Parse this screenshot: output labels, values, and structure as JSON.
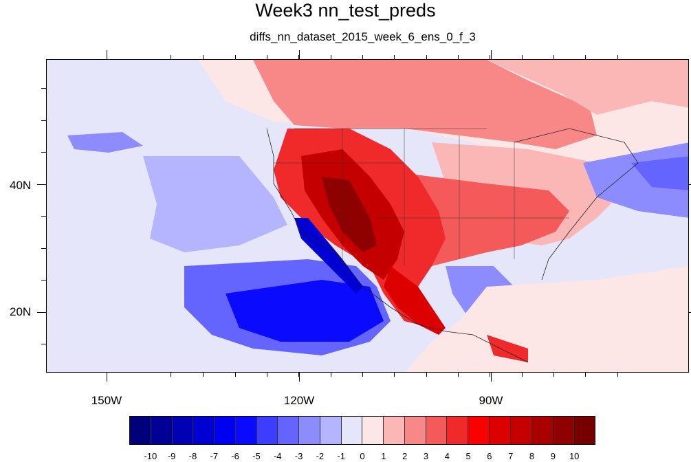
{
  "title": "Week3 nn_test_preds",
  "subtitle": "diffs_nn_dataset_2015_week_6_ens_0_f_3",
  "map": {
    "projection": "cylindrical-equidistant",
    "region": "North America and eastern North Pacific",
    "lon_labels": [
      "150W",
      "120W",
      "90W"
    ],
    "lat_labels": [
      "40N",
      "20N"
    ]
  },
  "colorbar": {
    "colors": [
      "#00007a",
      "#000096",
      "#0000b4",
      "#0000d2",
      "#0000f0",
      "#0a0aff",
      "#3d3dff",
      "#6464ff",
      "#8c8cff",
      "#b4b4ff",
      "#e6e6fa",
      "#fde6e6",
      "#fbb6b6",
      "#f88888",
      "#f55a5a",
      "#f02a2a",
      "#fa0000",
      "#dc0000",
      "#c40000",
      "#aa0000",
      "#8f0000",
      "#760000"
    ],
    "labels": [
      "-10",
      "-9",
      "-8",
      "-7",
      "-6",
      "-5",
      "-4",
      "-3",
      "-2",
      "-1",
      "0",
      "1",
      "2",
      "3",
      "4",
      "5",
      "6",
      "7",
      "8",
      "9",
      "10"
    ]
  }
}
